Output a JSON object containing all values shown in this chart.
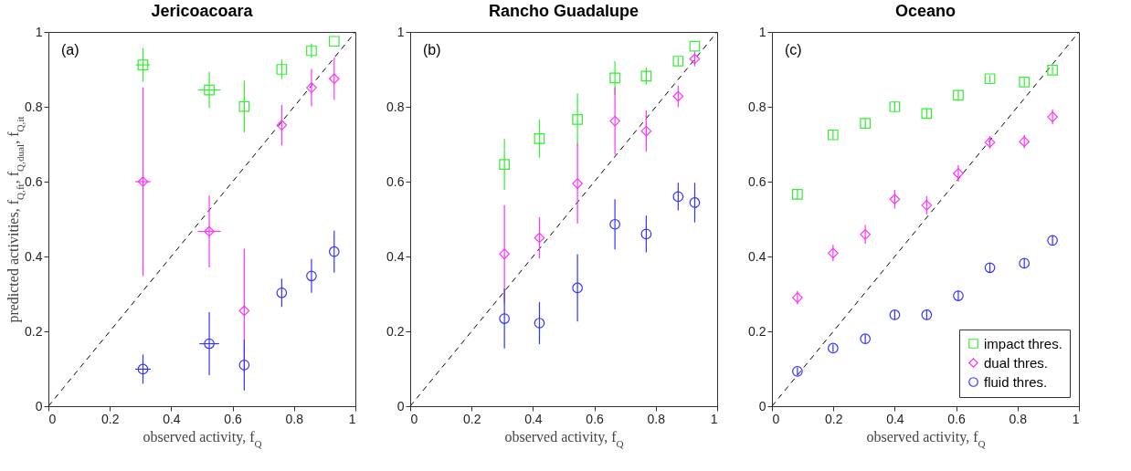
{
  "chart_data": [
    {
      "type": "scatter",
      "title": "Jericoacoara",
      "xlabel": "observed activity, f$_{Q}$",
      "ylabel": "predicted activities, f$_{Q,ft}$, f$_{Q,dual}$, f$_{Q,it}$",
      "annotations": [
        "(a)"
      ],
      "xlim": [
        0,
        1
      ],
      "ylim": [
        0,
        1
      ],
      "xticks": [
        0,
        0.2,
        0.4,
        0.6,
        0.8,
        1
      ],
      "yticks": [
        0,
        0.2,
        0.4,
        0.6,
        0.8,
        1
      ],
      "series": [
        {
          "color": "#33ee33",
          "marker": "square",
          "x": [
            0.308,
            0.524,
            0.638,
            0.76,
            0.857,
            0.931
          ],
          "values": [
            0.912,
            0.845,
            0.801,
            0.9,
            0.95,
            0.975
          ],
          "errors": [
            0.045,
            0.048,
            0.069,
            0.026,
            0.019,
            null
          ],
          "xerrors": [
            0.023,
            0.037,
            null,
            null,
            null,
            null
          ]
        },
        {
          "color": "#ff33ff",
          "marker": "diamond",
          "x": [
            0.308,
            0.524,
            0.638,
            0.76,
            0.857,
            0.931
          ],
          "values": [
            0.6,
            0.467,
            0.255,
            0.751,
            0.851,
            0.875
          ],
          "errors": [
            0.252,
            0.096,
            0.166,
            0.054,
            0.05,
            0.057
          ],
          "xerrors": [
            0.025,
            0.037,
            null,
            null,
            null,
            null
          ]
        },
        {
          "color": "#3333ff",
          "marker": "circle",
          "x": [
            0.308,
            0.524,
            0.638,
            0.76,
            0.857,
            0.931
          ],
          "values": [
            0.099,
            0.167,
            0.11,
            0.303,
            0.348,
            0.413
          ],
          "errors": [
            0.039,
            0.084,
            0.068,
            0.038,
            0.045,
            0.056
          ],
          "xerrors": [
            0.025,
            0.032,
            null,
            null,
            null,
            null
          ]
        },
        {
          "type": "line",
          "color": "#000000",
          "line_style": "dashed",
          "x": [
            0,
            1
          ],
          "values": [
            0,
            1
          ]
        }
      ]
    },
    {
      "type": "scatter",
      "title": "Rancho Guadalupe",
      "xlabel": "observed activity, f$_{Q}$",
      "annotations": [
        "(b)"
      ],
      "xlim": [
        0,
        1
      ],
      "ylim": [
        0,
        1
      ],
      "xticks": [
        0,
        0.2,
        0.4,
        0.6,
        0.8,
        1
      ],
      "yticks": [
        0,
        0.2,
        0.4,
        0.6,
        0.8,
        1
      ],
      "series": [
        {
          "color": "#33ee33",
          "marker": "square",
          "x": [
            0.307,
            0.421,
            0.545,
            0.667,
            0.769,
            0.873,
            0.927
          ],
          "values": [
            0.646,
            0.715,
            0.766,
            0.877,
            0.882,
            0.922,
            0.962
          ],
          "errors": [
            0.068,
            0.051,
            0.07,
            0.045,
            0.023,
            0.011,
            null
          ]
        },
        {
          "color": "#ff33ff",
          "marker": "diamond",
          "x": [
            0.307,
            0.421,
            0.545,
            0.667,
            0.769,
            0.873,
            0.927
          ],
          "values": [
            0.407,
            0.45,
            0.595,
            0.762,
            0.735,
            0.828,
            0.928
          ],
          "errors": [
            0.13,
            0.055,
            0.107,
            0.09,
            0.055,
            0.029,
            0.02
          ]
        },
        {
          "color": "#3333ff",
          "marker": "circle",
          "x": [
            0.307,
            0.421,
            0.545,
            0.667,
            0.769,
            0.873,
            0.927
          ],
          "values": [
            0.234,
            0.222,
            0.316,
            0.486,
            0.46,
            0.56,
            0.544
          ],
          "errors": [
            0.08,
            0.056,
            0.09,
            0.067,
            0.049,
            0.037,
            0.053
          ]
        },
        {
          "type": "line",
          "color": "#000000",
          "line_style": "dashed",
          "x": [
            0,
            1
          ],
          "values": [
            0,
            1
          ]
        }
      ]
    },
    {
      "type": "scatter",
      "title": "Oceano",
      "xlabel": "observed activity, f$_{Q}$",
      "annotations": [
        "(c)"
      ],
      "xlim": [
        0,
        1
      ],
      "ylim": [
        0,
        1
      ],
      "xticks": [
        0,
        0.2,
        0.4,
        0.6,
        0.8,
        1
      ],
      "yticks": [
        0,
        0.2,
        0.4,
        0.6,
        0.8,
        1
      ],
      "legend": "bottom right",
      "series": [
        {
          "name": "impact thres.",
          "color": "#33ee33",
          "marker": "square",
          "x": [
            0.083,
            0.199,
            0.304,
            0.4,
            0.504,
            0.607,
            0.71,
            0.822,
            0.914
          ],
          "values": [
            0.566,
            0.725,
            0.756,
            0.8,
            0.782,
            0.831,
            0.875,
            0.866,
            0.898
          ],
          "errors": [
            0.013,
            0.012,
            0.013,
            0.014,
            0.014,
            0.013,
            0.01,
            0.01,
            0.01
          ]
        },
        {
          "name": "dual thres.",
          "color": "#ff33ff",
          "marker": "diamond",
          "x": [
            0.083,
            0.199,
            0.304,
            0.4,
            0.504,
            0.607,
            0.71,
            0.822,
            0.914
          ],
          "values": [
            0.29,
            0.409,
            0.459,
            0.553,
            0.537,
            0.622,
            0.705,
            0.707,
            0.773
          ],
          "errors": [
            0.018,
            0.022,
            0.025,
            0.025,
            0.024,
            0.022,
            0.017,
            0.018,
            0.02
          ]
        },
        {
          "name": "fluid thres.",
          "color": "#3333ff",
          "marker": "circle",
          "x": [
            0.083,
            0.199,
            0.304,
            0.4,
            0.504,
            0.607,
            0.71,
            0.822,
            0.914
          ],
          "values": [
            0.093,
            0.155,
            0.18,
            0.244,
            0.244,
            0.295,
            0.37,
            0.382,
            0.443
          ],
          "errors": [
            0.01,
            0.01,
            0.012,
            0.012,
            0.012,
            0.014,
            0.013,
            0.012,
            0.014
          ]
        },
        {
          "type": "line",
          "color": "#000000",
          "line_style": "dashed",
          "x": [
            0,
            1
          ],
          "values": [
            0,
            1
          ]
        }
      ]
    }
  ]
}
